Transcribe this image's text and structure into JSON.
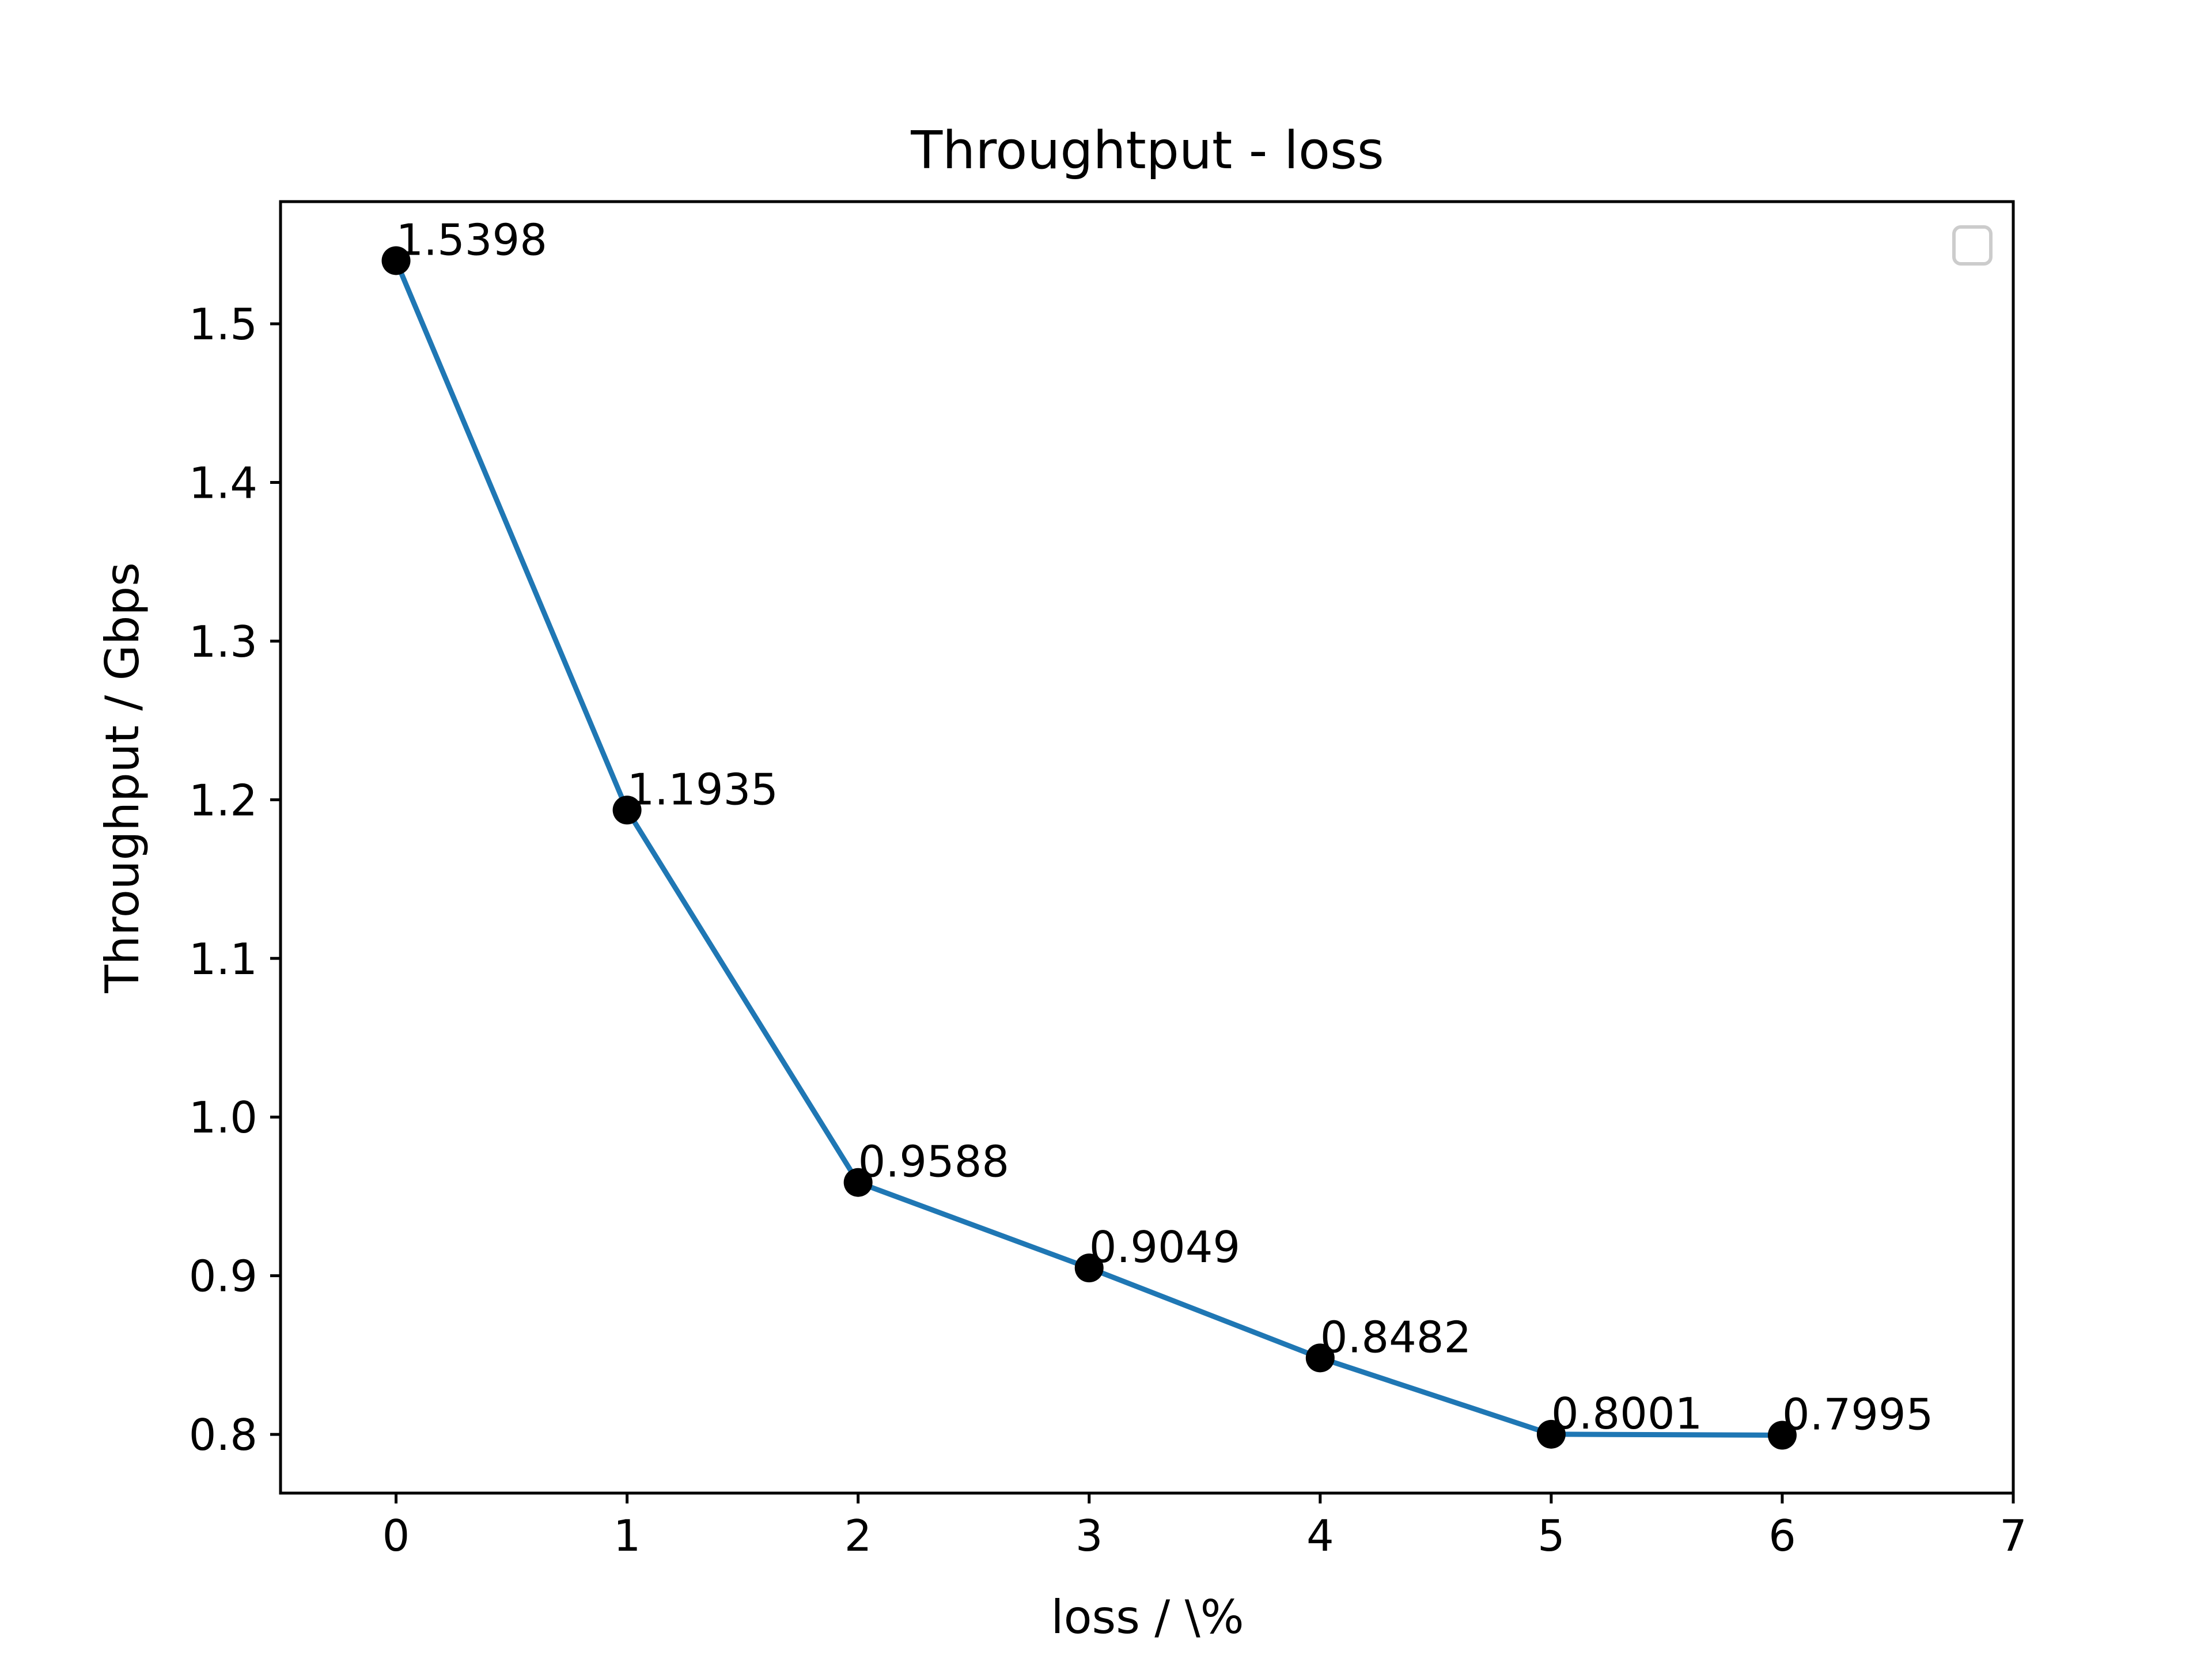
{
  "chart_data": {
    "type": "line",
    "title": "Throughtput - loss",
    "xlabel": "loss / \\%",
    "ylabel": "Throughput / Gbps",
    "x": [
      0,
      1,
      2,
      3,
      4,
      5,
      6
    ],
    "series": [
      {
        "values": [
          1.5398,
          1.1935,
          0.9588,
          0.9049,
          0.8482,
          0.8001,
          0.7995
        ],
        "data_labels": [
          "1.5398",
          "1.1935",
          "0.9588",
          "0.9049",
          "0.8482",
          "0.8001",
          "0.7995"
        ]
      }
    ],
    "xlim": [
      -0.5,
      7
    ],
    "ylim": [
      0.763,
      1.577
    ],
    "xticks": [
      0,
      1,
      2,
      3,
      4,
      5,
      6,
      7
    ],
    "xtick_labels": [
      "0",
      "1",
      "2",
      "3",
      "4",
      "5",
      "6",
      "7"
    ],
    "yticks": [
      0.8,
      0.9,
      1.0,
      1.1,
      1.2,
      1.3,
      1.4,
      1.5
    ],
    "ytick_labels": [
      "0.8",
      "0.9",
      "1.0",
      "1.1",
      "1.2",
      "1.3",
      "1.4",
      "1.5"
    ],
    "grid": false,
    "legend": "top-right (empty)",
    "colors": {
      "line": "#1f77b4",
      "markers": "#000000",
      "legend_border": "#cccccc"
    }
  }
}
